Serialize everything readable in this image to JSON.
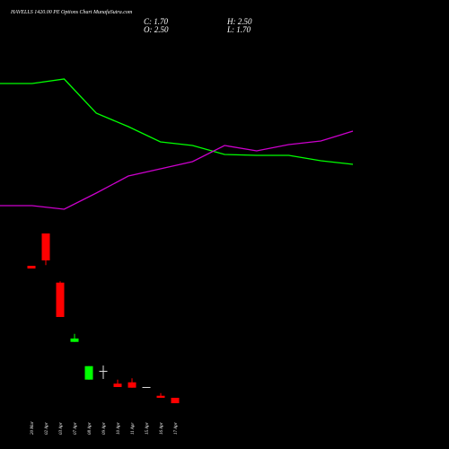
{
  "chart_data": [
    {
      "type": "candlestick",
      "title": "HAVELLS 1420.00 PE Options Chart MunafaSutra.com",
      "summary": [
        {
          "value": 1.7,
          "label": "C: 1.70"
        },
        {
          "value": 2.5,
          "label": "H: 2.50"
        },
        {
          "value": 2.5,
          "label": "O: 2.50"
        },
        {
          "value": 1.7,
          "label": "L: 1.70"
        }
      ],
      "categories": [
        "20 Mar",
        "02 Apr",
        "03 Apr",
        "07 Apr",
        "08 Apr",
        "09 Apr",
        "10 Apr",
        "11 Apr",
        "15 Apr",
        "16 Apr",
        "17 Apr"
      ],
      "open": [
        22.1,
        26.9,
        19.6,
        10.8,
        5.2,
        6.5,
        4.6,
        4.8,
        4.1,
        2.8,
        2.5
      ],
      "high": [
        22.1,
        26.9,
        19.8,
        12.0,
        7.2,
        7.3,
        5.2,
        5.4,
        4.1,
        3.2,
        2.5
      ],
      "low": [
        21.7,
        22.2,
        14.5,
        10.8,
        5.2,
        5.3,
        4.1,
        4.0,
        4.1,
        2.5,
        1.7
      ],
      "close": [
        21.7,
        22.9,
        14.5,
        11.3,
        7.2,
        6.5,
        4.1,
        4.0,
        4.1,
        2.5,
        1.7
      ],
      "up_color": "#00ff00",
      "down_color": "#ff0000",
      "flat_color": "#dddddd",
      "ylim": [
        0.23,
        28.23
      ]
    },
    {
      "type": "line",
      "categories": [
        null,
        null,
        null,
        null,
        null,
        null,
        null,
        null,
        null,
        null,
        null,
        null
      ],
      "series": [
        {
          "color": "#00ff00",
          "values": [
            78.5,
            78.5,
            81,
            62,
            54.5,
            46,
            44,
            39,
            38.5,
            38.5,
            35.5,
            33.5
          ]
        },
        {
          "color": "#cc00cc",
          "values": [
            10.5,
            10.5,
            8.5,
            17.5,
            27,
            31,
            35,
            44,
            41,
            44.5,
            46.5,
            52
          ]
        }
      ],
      "ylim": [
        0,
        100
      ]
    }
  ]
}
